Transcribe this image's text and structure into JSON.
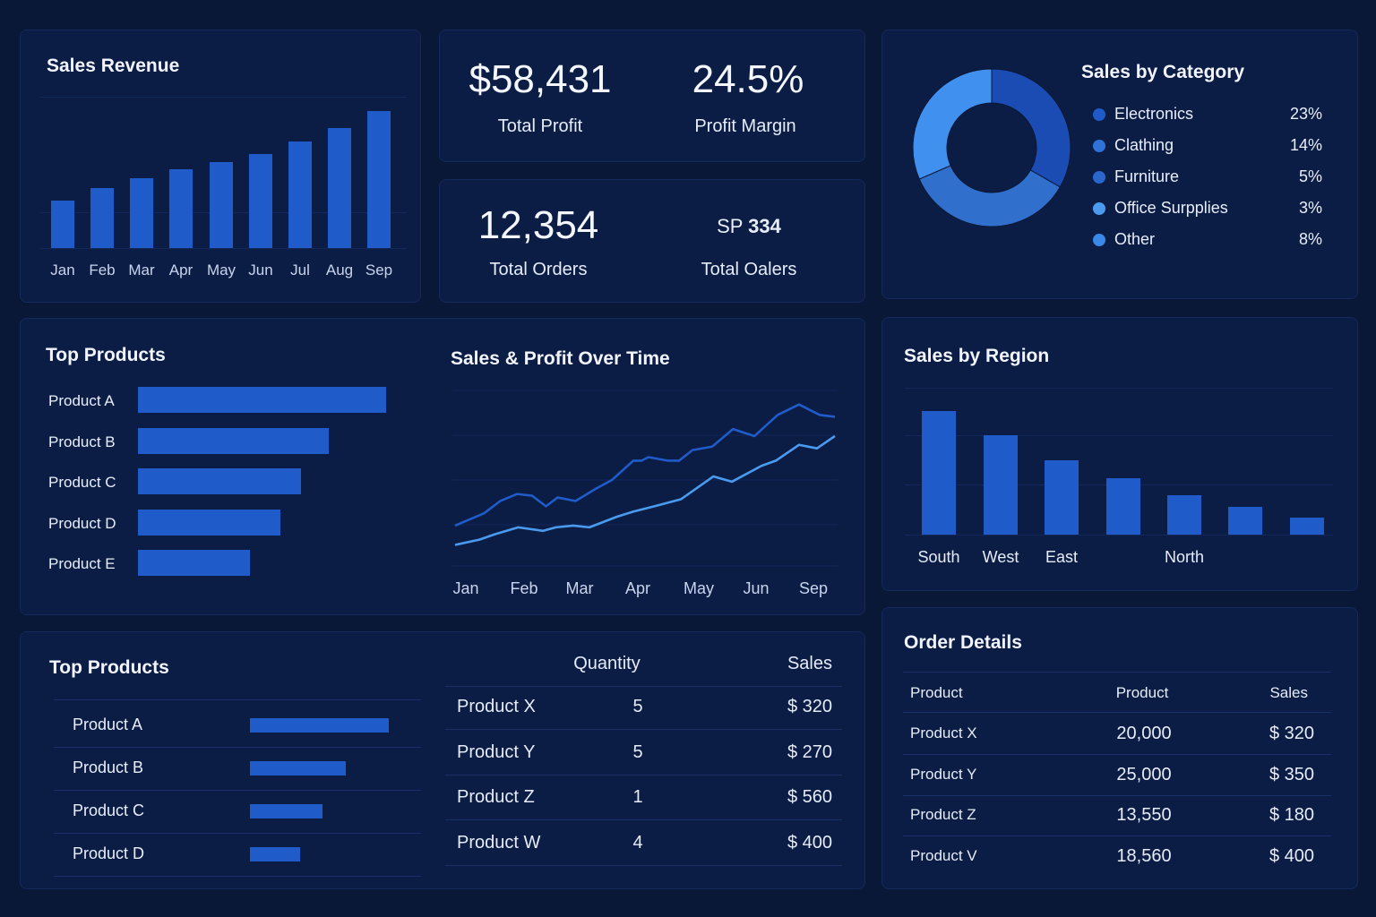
{
  "colors": {
    "background": "#0a1838",
    "panel": "#0b1d44",
    "bar": "#1f5bc9",
    "line_sales": "#1f5bc9",
    "line_profit": "#4a9bf0"
  },
  "sales_revenue": {
    "title": "Sales Revenue"
  },
  "kpis": {
    "total_profit": {
      "value": "$58,431",
      "label": "Total Profit"
    },
    "profit_margin": {
      "value": "24.5%",
      "label": "Profit Margin"
    },
    "total_orders": {
      "value": "12,354",
      "label": "Total Orders"
    },
    "total_oalers": {
      "prefix": "SP",
      "value": "334",
      "label": "Total Oalers"
    }
  },
  "sales_by_category": {
    "title": "Sales by Category"
  },
  "top_products_chart": {
    "title": "Top Products"
  },
  "sales_profit": {
    "title": "Sales & Profit Over Time"
  },
  "sales_by_region": {
    "title": "Sales by Region"
  },
  "top_products_list": {
    "title": "Top Products"
  },
  "products_table": {
    "headers": [
      "",
      "Quantity",
      "Sales"
    ],
    "rows": [
      [
        "Product X",
        "5",
        "$ 320"
      ],
      [
        "Product Y",
        "5",
        "$ 270"
      ],
      [
        "Product Z",
        "1",
        "$ 560"
      ],
      [
        "Product W",
        "4",
        "$ 400"
      ]
    ]
  },
  "order_details": {
    "title": "Order Details",
    "headers": [
      "Product",
      "Product",
      "Sales"
    ],
    "rows": [
      [
        "Product X",
        "20,000",
        "$ 320"
      ],
      [
        "Product Y",
        "25,000",
        "$ 350"
      ],
      [
        "Product Z",
        "13,550",
        "$ 180"
      ],
      [
        "Product V",
        "18,560",
        "$ 400"
      ]
    ]
  },
  "chart_data": [
    {
      "id": "sales_revenue",
      "type": "bar",
      "title": "Sales Revenue",
      "categories": [
        "Jan",
        "Feb",
        "Mar",
        "Apr",
        "May",
        "Jun",
        "Jul",
        "Aug",
        "Sep"
      ],
      "values": [
        53,
        67,
        78,
        88,
        96,
        105,
        119,
        134,
        153
      ],
      "ylim": [
        0,
        170
      ],
      "grid": true
    },
    {
      "id": "sales_by_category",
      "type": "pie",
      "title": "Sales by Category",
      "legend": [
        {
          "label": "Electronics",
          "pct": "23%",
          "color": "#1f5bc9"
        },
        {
          "label": "Clathing",
          "pct": "14%",
          "color": "#2f72d8"
        },
        {
          "label": "Furniture",
          "pct": "5%",
          "color": "#2a66cc"
        },
        {
          "label": "Office Surpplies",
          "pct": "3%",
          "color": "#4a9bf0"
        },
        {
          "label": "Other",
          "pct": "8%",
          "color": "#3a88e8"
        }
      ],
      "segments": [
        {
          "fraction": 0.333,
          "color": "#1b4cb4"
        },
        {
          "fraction": 0.352,
          "color": "#3070cc"
        },
        {
          "fraction": 0.315,
          "color": "#4090ef"
        }
      ],
      "legend_position": "right"
    },
    {
      "id": "top_products",
      "type": "bar",
      "orientation": "horizontal",
      "title": "Top Products",
      "categories": [
        "Product A",
        "Product B",
        "Product C",
        "Product D",
        "Product E"
      ],
      "values": [
        277,
        213,
        182,
        159,
        125
      ],
      "xlim": [
        0,
        280
      ]
    },
    {
      "id": "sales_profit",
      "type": "line",
      "title": "Sales & Profit Over Time",
      "x_ticks": [
        "Jan",
        "Feb",
        "Mar",
        "Apr",
        "May",
        "Jun",
        "Sep"
      ],
      "xlim": [
        -0.19,
        6.37
      ],
      "ylim": [
        0,
        100
      ],
      "grid": true,
      "series": [
        {
          "color": "#1f5bc9",
          "points": [
            [
              -0.19,
              23
            ],
            [
              0.31,
              30
            ],
            [
              0.59,
              37
            ],
            [
              0.88,
              41
            ],
            [
              1.14,
              40
            ],
            [
              1.38,
              34
            ],
            [
              1.58,
              39
            ],
            [
              1.89,
              37
            ],
            [
              2.24,
              44
            ],
            [
              2.52,
              49
            ],
            [
              2.89,
              60
            ],
            [
              3.03,
              60
            ],
            [
              3.15,
              62
            ],
            [
              3.48,
              60
            ],
            [
              3.68,
              60
            ],
            [
              3.91,
              66
            ],
            [
              4.25,
              68
            ],
            [
              4.61,
              78
            ],
            [
              4.98,
              74
            ],
            [
              5.38,
              86
            ],
            [
              5.75,
              92
            ],
            [
              6.11,
              86
            ],
            [
              6.37,
              85
            ]
          ]
        },
        {
          "color": "#4a9bf0",
          "points": [
            [
              -0.19,
              12
            ],
            [
              0.23,
              15
            ],
            [
              0.49,
              18
            ],
            [
              0.9,
              22
            ],
            [
              1.33,
              20
            ],
            [
              1.55,
              22
            ],
            [
              1.85,
              23
            ],
            [
              2.13,
              22
            ],
            [
              2.6,
              28
            ],
            [
              2.89,
              31
            ],
            [
              3.25,
              34
            ],
            [
              3.71,
              38
            ],
            [
              4.27,
              51
            ],
            [
              4.59,
              48
            ],
            [
              5.1,
              57
            ],
            [
              5.35,
              60
            ],
            [
              5.75,
              69
            ],
            [
              6.06,
              67
            ],
            [
              6.37,
              74
            ]
          ]
        }
      ]
    },
    {
      "id": "sales_by_region",
      "type": "bar",
      "title": "Sales by Region",
      "categories": [
        "South",
        "West",
        "East",
        "",
        "North",
        "",
        ""
      ],
      "values": [
        138,
        111,
        83,
        63,
        44,
        31,
        19
      ],
      "ylim": [
        0,
        165
      ],
      "grid": true
    },
    {
      "id": "top_products_list",
      "type": "bar",
      "orientation": "horizontal",
      "title": "Top Products",
      "categories": [
        "Product A",
        "Product B",
        "Product C",
        "Product D"
      ],
      "values": [
        155,
        107,
        81,
        56
      ],
      "xlim": [
        0,
        160
      ]
    }
  ]
}
